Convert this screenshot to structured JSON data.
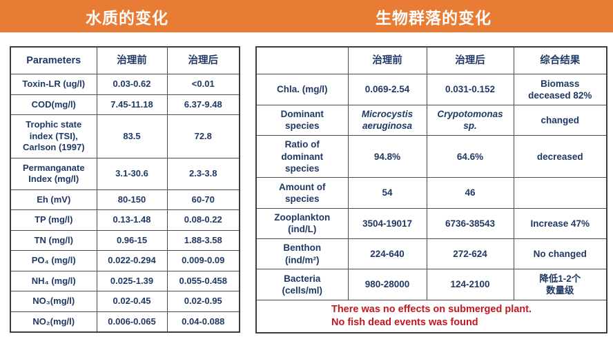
{
  "header": {
    "left_title": "水质的变化",
    "right_title": "生物群落的变化"
  },
  "colors": {
    "accent_orange": "#E87C35",
    "text_navy": "#1F3864",
    "note_red": "#C31722",
    "border_gray": "#4a4a4a"
  },
  "water_quality_table": {
    "headers": [
      "Parameters",
      "治理前",
      "治理后"
    ],
    "rows": [
      {
        "cells": [
          "Toxin-LR (ug/l)",
          "0.03-0.62",
          "<0.01"
        ]
      },
      {
        "cells": [
          "COD(mg/l)",
          "7.45-11.18",
          "6.37-9.48"
        ]
      },
      {
        "cells": [
          "Trophic state\nindex (TSI),\nCarlson (1997)",
          "83.5",
          "72.8"
        ]
      },
      {
        "cells": [
          "Permanganate\nIndex (mg/l)",
          "3.1-30.6",
          "2.3-3.8"
        ]
      },
      {
        "cells": [
          "Eh (mV)",
          "80-150",
          "60-70"
        ]
      },
      {
        "cells": [
          "TP (mg/l)",
          "0.13-1.48",
          "0.08-0.22"
        ]
      },
      {
        "cells": [
          "TN (mg/l)",
          "0.96-15",
          "1.88-3.58"
        ]
      },
      {
        "cells": [
          "PO₄ (mg/l)",
          "0.022-0.294",
          "0.009-0.09"
        ]
      },
      {
        "cells": [
          "NH₄ (mg/l)",
          "0.025-1.39",
          "0.055-0.458"
        ]
      },
      {
        "cells": [
          "NO₃(mg/l)",
          "0.02-0.45",
          "0.02-0.95"
        ]
      },
      {
        "cells": [
          "NO₂(mg/l)",
          "0.006-0.065",
          "0.04-0.088"
        ]
      }
    ]
  },
  "bio_community_table": {
    "headers": [
      "",
      "治理前",
      "治理后",
      "综合结果"
    ],
    "rows": [
      {
        "cells": [
          "Chla. (mg/l)",
          "0.069-2.54",
          "0.031-0.152",
          "Biomass\ndeceased 82%"
        ]
      },
      {
        "cells": [
          "Dominant\nspecies",
          "Microcystis\naeruginosa",
          "Crypotomonas\nsp.",
          "changed"
        ],
        "italic_cells": [
          1,
          2
        ]
      },
      {
        "cells": [
          "Ratio of\ndominant\nspecies",
          "94.8%",
          "64.6%",
          "decreased"
        ]
      },
      {
        "cells": [
          "Amount of\nspecies",
          "54",
          "46",
          ""
        ]
      },
      {
        "cells": [
          "Zooplankton\n(ind/L)",
          "3504-19017",
          "6736-38543",
          "Increase 47%"
        ]
      },
      {
        "cells": [
          "Benthon\n(ind/m²)",
          "224-640",
          "272-624",
          "No changed"
        ]
      },
      {
        "cells": [
          "Bacteria\n(cells/ml)",
          "980-28000",
          "124-2100",
          "降低1-2个\n数量级"
        ]
      }
    ],
    "footer_note": "There was no effects on submerged plant.\nNo fish dead events was found"
  }
}
